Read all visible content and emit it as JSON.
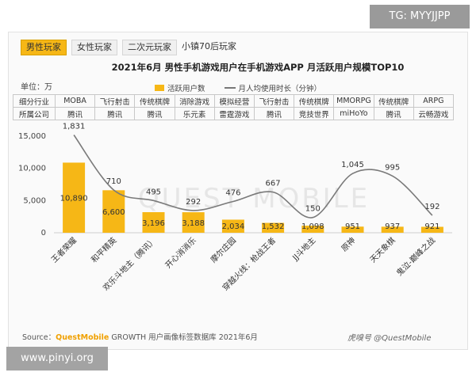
{
  "overlay": {
    "tg": "TG: MYYJJPP",
    "site": "www.pinyi.org"
  },
  "tabs": [
    {
      "label": "男性玩家",
      "active": true
    },
    {
      "label": "女性玩家",
      "active": false
    },
    {
      "label": "二次元玩家",
      "active": false
    },
    {
      "label": "小镇70后玩家",
      "active": false
    }
  ],
  "unit_label": "单位：万",
  "legend": {
    "bar": "活跃用户数",
    "line": "月人均使用时长（分钟）"
  },
  "table": {
    "row1_header": "细分行业",
    "row2_header": "所属公司",
    "industries": [
      "MOBA",
      "飞行射击",
      "传统棋牌",
      "消除游戏",
      "模拟经营",
      "飞行射击",
      "传统棋牌",
      "MMORPG",
      "传统棋牌",
      "ARPG"
    ],
    "companies": [
      "腾讯",
      "腾讯",
      "腾讯",
      "乐元素",
      "雷霆游戏",
      "腾讯",
      "竞技世界",
      "miHoYo",
      "腾讯",
      "云畅游戏"
    ]
  },
  "source": {
    "prefix": "Source：",
    "brand": "QuestMobile",
    "suffix": " GROWTH 用户画像标签数据库 2021年6月"
  },
  "credit": "虎嗅号  @QuestMobile",
  "watermark": "QUEST MOBILE",
  "chart_data": {
    "type": "bar",
    "title": "2021年6月 男性手机游戏用户在手机游戏APP 月活跃用户规模TOP10",
    "categories": [
      "王者荣耀",
      "和平精英",
      "欢乐斗地主（腾讯）",
      "开心消消乐",
      "摩尔庄园",
      "穿越火线：枪战王者",
      "JJ斗地主",
      "原神",
      "天天象棋",
      "鬼泣-巅峰之战"
    ],
    "series": [
      {
        "name": "活跃用户数",
        "type": "bar",
        "values": [
          10890,
          6600,
          3196,
          3188,
          2034,
          1532,
          1098,
          951,
          937,
          921
        ]
      },
      {
        "name": "月人均使用时长（分钟）",
        "type": "line",
        "values": [
          1831,
          710,
          495,
          292,
          476,
          667,
          150,
          1045,
          995,
          192
        ]
      }
    ],
    "ylim": [
      0,
      15000
    ],
    "yticks": [
      "0",
      "5,000",
      "10,000",
      "15,000"
    ],
    "colors": {
      "bar": "#f6b716",
      "line": "#7a7a7a"
    }
  }
}
